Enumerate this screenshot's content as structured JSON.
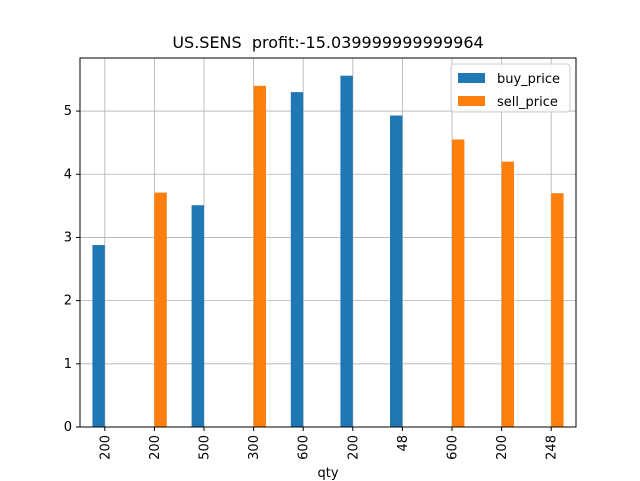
{
  "chart_data": {
    "type": "bar",
    "title": "US.SENS  profit:-15.039999999999964",
    "xlabel": "qty",
    "ylabel": "",
    "categories": [
      "200",
      "200",
      "500",
      "300",
      "600",
      "200",
      "48",
      "600",
      "200",
      "248"
    ],
    "series": [
      {
        "name": "buy_price",
        "color": "#1f77b4",
        "values": [
          2.88,
          null,
          3.51,
          null,
          5.3,
          5.56,
          4.93,
          null,
          null,
          null
        ]
      },
      {
        "name": "sell_price",
        "color": "#ff7f0e",
        "values": [
          null,
          3.71,
          null,
          5.4,
          null,
          null,
          null,
          4.55,
          4.2,
          3.7
        ]
      }
    ],
    "ylim": [
      0,
      5.84
    ],
    "yticks": [
      0,
      1,
      2,
      3,
      4,
      5
    ],
    "grid": true,
    "legend": "top-right"
  }
}
